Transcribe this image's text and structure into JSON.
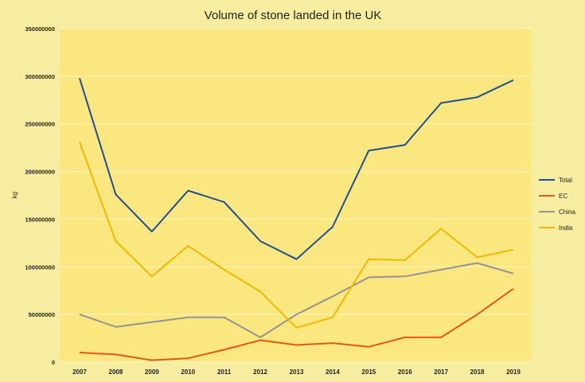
{
  "chart_data": {
    "type": "line",
    "title": "Volume of stone landed in the UK",
    "xlabel": "",
    "ylabel": "kg",
    "x": [
      "2007",
      "2008",
      "2009",
      "2010",
      "2011",
      "2012",
      "2013",
      "2014",
      "2015",
      "2016",
      "2017",
      "2018",
      "2019"
    ],
    "y_ticks": [
      "0",
      "50000000",
      "100000000",
      "150000000",
      "200000000",
      "250000000",
      "300000000",
      "350000000"
    ],
    "ylim": [
      0,
      350000000
    ],
    "grid": true,
    "legend_position": "right",
    "plot_background": "#fbe77f",
    "page_background": "#f6eda0",
    "series": [
      {
        "name": "Total",
        "color": "#1f4e96",
        "values": [
          298000000,
          176000000,
          137000000,
          180000000,
          168000000,
          127000000,
          108000000,
          142000000,
          222000000,
          228000000,
          272000000,
          278000000,
          296000000
        ]
      },
      {
        "name": "EC",
        "color": "#e0561b",
        "values": [
          10000000,
          8000000,
          2000000,
          4000000,
          13000000,
          23000000,
          18000000,
          20000000,
          16000000,
          26000000,
          26000000,
          50000000,
          77000000
        ]
      },
      {
        "name": "China",
        "color": "#939393",
        "values": [
          50000000,
          37000000,
          42000000,
          47000000,
          47000000,
          26000000,
          50000000,
          69000000,
          89000000,
          90000000,
          97000000,
          104000000,
          93000000
        ]
      },
      {
        "name": "India",
        "color": "#f2b800",
        "values": [
          231000000,
          127000000,
          90000000,
          122000000,
          97000000,
          74000000,
          36000000,
          47000000,
          108000000,
          107000000,
          140000000,
          110000000,
          118000000
        ]
      }
    ]
  }
}
